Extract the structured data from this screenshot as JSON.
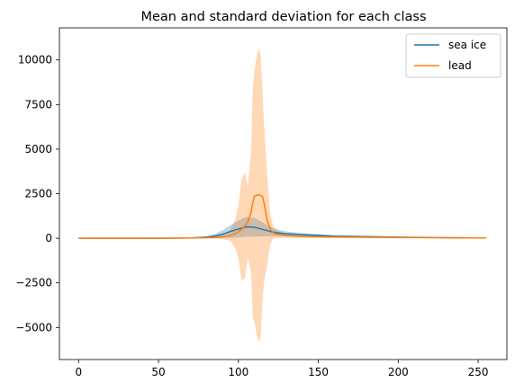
{
  "chart_data": {
    "type": "line",
    "title": "Mean and standard deviation for each class",
    "xlabel": "",
    "ylabel": "",
    "xlim": [
      -12,
      268
    ],
    "ylim": [
      -6800,
      11800
    ],
    "xticks": [
      0,
      50,
      100,
      150,
      200,
      250
    ],
    "yticks": [
      -5000,
      -2500,
      0,
      2500,
      5000,
      7500,
      10000
    ],
    "ytick_labels": [
      "−5000",
      "−2500",
      "0",
      "2500",
      "5000",
      "7500",
      "10000"
    ],
    "grid": false,
    "legend_position": "top-right",
    "series": [
      {
        "name": "sea ice",
        "color": "#1f77b4",
        "band_color": "#1f77b4",
        "band_opacity": 0.3,
        "x": [
          0,
          50,
          70,
          80,
          85,
          90,
          95,
          100,
          105,
          110,
          115,
          120,
          125,
          130,
          140,
          150,
          160,
          180,
          200,
          220,
          240,
          255
        ],
        "mean": [
          0,
          0,
          20,
          60,
          120,
          220,
          380,
          520,
          640,
          620,
          500,
          380,
          300,
          250,
          200,
          160,
          120,
          90,
          60,
          40,
          25,
          15
        ],
        "std": [
          0,
          0,
          20,
          60,
          120,
          220,
          350,
          480,
          560,
          520,
          400,
          260,
          180,
          130,
          90,
          70,
          50,
          30,
          20,
          15,
          10,
          5
        ]
      },
      {
        "name": "lead",
        "color": "#ff7f0e",
        "band_color": "#ff7f0e",
        "band_opacity": 0.3,
        "x": [
          0,
          50,
          70,
          80,
          85,
          90,
          95,
          98,
          100,
          102,
          104,
          106,
          108,
          109,
          110,
          111,
          112,
          113,
          114,
          115,
          116,
          117,
          118,
          120,
          122,
          125,
          130,
          140,
          160,
          200,
          255
        ],
        "mean": [
          0,
          5,
          15,
          30,
          50,
          80,
          150,
          250,
          350,
          500,
          700,
          950,
          1500,
          2000,
          2350,
          2400,
          2420,
          2430,
          2400,
          2350,
          2000,
          1500,
          1000,
          500,
          300,
          200,
          150,
          100,
          70,
          40,
          20
        ],
        "std": [
          0,
          5,
          15,
          30,
          60,
          120,
          300,
          800,
          1500,
          2800,
          3000,
          2000,
          3500,
          6500,
          7000,
          7600,
          8000,
          8300,
          7800,
          6000,
          4500,
          3500,
          2500,
          800,
          300,
          200,
          120,
          80,
          50,
          20,
          10
        ]
      }
    ]
  }
}
